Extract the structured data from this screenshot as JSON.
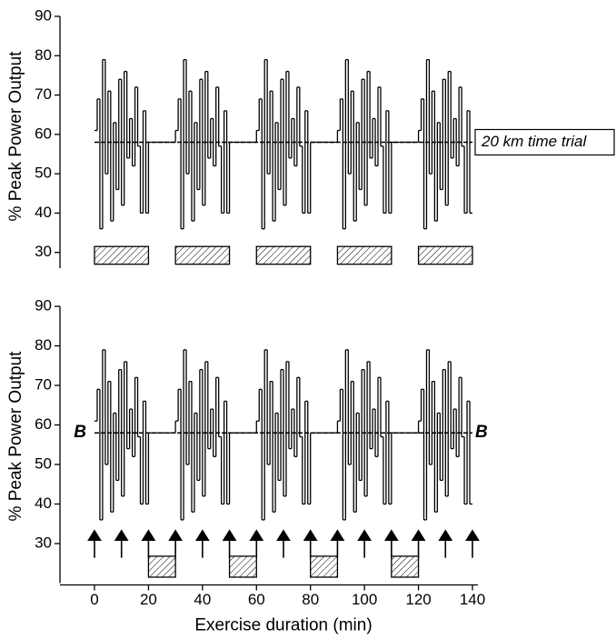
{
  "chart_data": [
    {
      "type": "step",
      "ylabel": "% Peak Power Output",
      "ylim": [
        26,
        90
      ],
      "yticks": [
        30,
        40,
        50,
        60,
        70,
        80,
        90
      ],
      "xlim": [
        0,
        140
      ],
      "x": [
        0,
        1,
        2,
        3,
        4,
        5,
        6,
        7,
        8,
        9,
        10,
        11,
        12,
        13,
        14,
        15,
        16,
        17,
        18,
        19,
        20,
        21,
        22,
        23,
        24,
        25,
        26,
        27,
        28,
        29,
        30,
        31,
        32,
        33,
        34,
        35,
        36,
        37,
        38,
        39,
        40,
        41,
        42,
        43,
        44,
        45,
        46,
        47,
        48,
        49,
        50,
        51,
        52,
        53,
        54,
        55,
        56,
        57,
        58,
        59,
        60,
        61,
        62,
        63,
        64,
        65,
        66,
        67,
        68,
        69,
        70,
        71,
        72,
        73,
        74,
        75,
        76,
        77,
        78,
        79,
        80,
        81,
        82,
        83,
        84,
        85,
        86,
        87,
        88,
        89,
        90,
        91,
        92,
        93,
        94,
        95,
        96,
        97,
        98,
        99,
        100,
        101,
        102,
        103,
        104,
        105,
        106,
        107,
        108,
        109,
        110,
        111,
        112,
        113,
        114,
        115,
        116,
        117,
        118,
        119,
        120,
        121,
        122,
        123,
        124,
        125,
        126,
        127,
        128,
        129,
        130,
        131,
        132,
        133,
        134,
        135,
        136,
        137,
        138,
        139
      ],
      "series": [
        {
          "color": "#000000",
          "values": [
            61,
            69,
            36,
            79,
            50,
            71,
            38,
            63,
            46,
            74,
            42,
            76,
            54,
            64,
            52,
            72,
            57,
            40,
            66,
            40,
            58,
            58,
            58,
            58,
            58,
            58,
            58,
            58,
            58,
            58,
            61,
            69,
            36,
            79,
            50,
            71,
            38,
            63,
            46,
            74,
            42,
            76,
            54,
            64,
            52,
            72,
            57,
            40,
            66,
            40,
            58,
            58,
            58,
            58,
            58,
            58,
            58,
            58,
            58,
            58,
            61,
            69,
            36,
            79,
            50,
            71,
            38,
            63,
            46,
            74,
            42,
            76,
            54,
            64,
            52,
            72,
            57,
            40,
            66,
            40,
            58,
            58,
            58,
            58,
            58,
            58,
            58,
            58,
            58,
            58,
            61,
            69,
            36,
            79,
            50,
            71,
            38,
            63,
            46,
            74,
            42,
            76,
            54,
            64,
            52,
            72,
            57,
            40,
            66,
            40,
            58,
            58,
            58,
            58,
            58,
            58,
            58,
            58,
            58,
            58,
            61,
            69,
            36,
            79,
            50,
            71,
            38,
            63,
            46,
            74,
            42,
            76,
            54,
            64,
            52,
            72,
            57,
            40,
            66,
            40
          ]
        }
      ],
      "reference": 58,
      "reference_labels": [
        "20 km time trial"
      ],
      "blocks": [
        [
          0,
          20
        ],
        [
          30,
          50
        ],
        [
          60,
          80
        ],
        [
          90,
          110
        ],
        [
          120,
          140
        ]
      ],
      "block_range": [
        27,
        31.5
      ]
    },
    {
      "type": "step",
      "ylabel": "% Peak Power Output",
      "xlabel": "Exercise duration (min)",
      "ylim": [
        20,
        90
      ],
      "yticks": [
        30,
        40,
        50,
        60,
        70,
        80,
        90
      ],
      "xlim": [
        0,
        140
      ],
      "xticks": [
        0,
        20,
        40,
        60,
        80,
        100,
        120,
        140
      ],
      "x": [
        0,
        1,
        2,
        3,
        4,
        5,
        6,
        7,
        8,
        9,
        10,
        11,
        12,
        13,
        14,
        15,
        16,
        17,
        18,
        19,
        20,
        21,
        22,
        23,
        24,
        25,
        26,
        27,
        28,
        29,
        30,
        31,
        32,
        33,
        34,
        35,
        36,
        37,
        38,
        39,
        40,
        41,
        42,
        43,
        44,
        45,
        46,
        47,
        48,
        49,
        50,
        51,
        52,
        53,
        54,
        55,
        56,
        57,
        58,
        59,
        60,
        61,
        62,
        63,
        64,
        65,
        66,
        67,
        68,
        69,
        70,
        71,
        72,
        73,
        74,
        75,
        76,
        77,
        78,
        79,
        80,
        81,
        82,
        83,
        84,
        85,
        86,
        87,
        88,
        89,
        90,
        91,
        92,
        93,
        94,
        95,
        96,
        97,
        98,
        99,
        100,
        101,
        102,
        103,
        104,
        105,
        106,
        107,
        108,
        109,
        110,
        111,
        112,
        113,
        114,
        115,
        116,
        117,
        118,
        119,
        120,
        121,
        122,
        123,
        124,
        125,
        126,
        127,
        128,
        129,
        130,
        131,
        132,
        133,
        134,
        135,
        136,
        137,
        138,
        139
      ],
      "series": [
        {
          "color": "#000000",
          "values": [
            61,
            69,
            36,
            79,
            50,
            71,
            38,
            63,
            46,
            74,
            42,
            76,
            54,
            64,
            52,
            72,
            57,
            40,
            66,
            40,
            58,
            58,
            58,
            58,
            58,
            58,
            58,
            58,
            58,
            58,
            61,
            69,
            36,
            79,
            50,
            71,
            38,
            63,
            46,
            74,
            42,
            76,
            54,
            64,
            52,
            72,
            57,
            40,
            66,
            40,
            58,
            58,
            58,
            58,
            58,
            58,
            58,
            58,
            58,
            58,
            61,
            69,
            36,
            79,
            50,
            71,
            38,
            63,
            46,
            74,
            42,
            76,
            54,
            64,
            52,
            72,
            57,
            40,
            66,
            40,
            58,
            58,
            58,
            58,
            58,
            58,
            58,
            58,
            58,
            58,
            61,
            69,
            36,
            79,
            50,
            71,
            38,
            63,
            46,
            74,
            42,
            76,
            54,
            64,
            52,
            72,
            57,
            40,
            66,
            40,
            58,
            58,
            58,
            58,
            58,
            58,
            58,
            58,
            58,
            58,
            61,
            69,
            36,
            79,
            50,
            71,
            38,
            63,
            46,
            74,
            42,
            76,
            54,
            64,
            52,
            72,
            57,
            40,
            66,
            40
          ]
        }
      ],
      "reference": 58,
      "reference_labels": [
        "B",
        "B"
      ],
      "blocks": [
        [
          20,
          30
        ],
        [
          50,
          60
        ],
        [
          80,
          90
        ],
        [
          110,
          120
        ]
      ],
      "block_range": [
        21.5,
        26.8
      ],
      "arrows": [
        0,
        10,
        20,
        30,
        40,
        50,
        60,
        70,
        80,
        90,
        100,
        110,
        120,
        130,
        140
      ],
      "arrow_range": [
        26.4,
        33.5
      ]
    }
  ]
}
